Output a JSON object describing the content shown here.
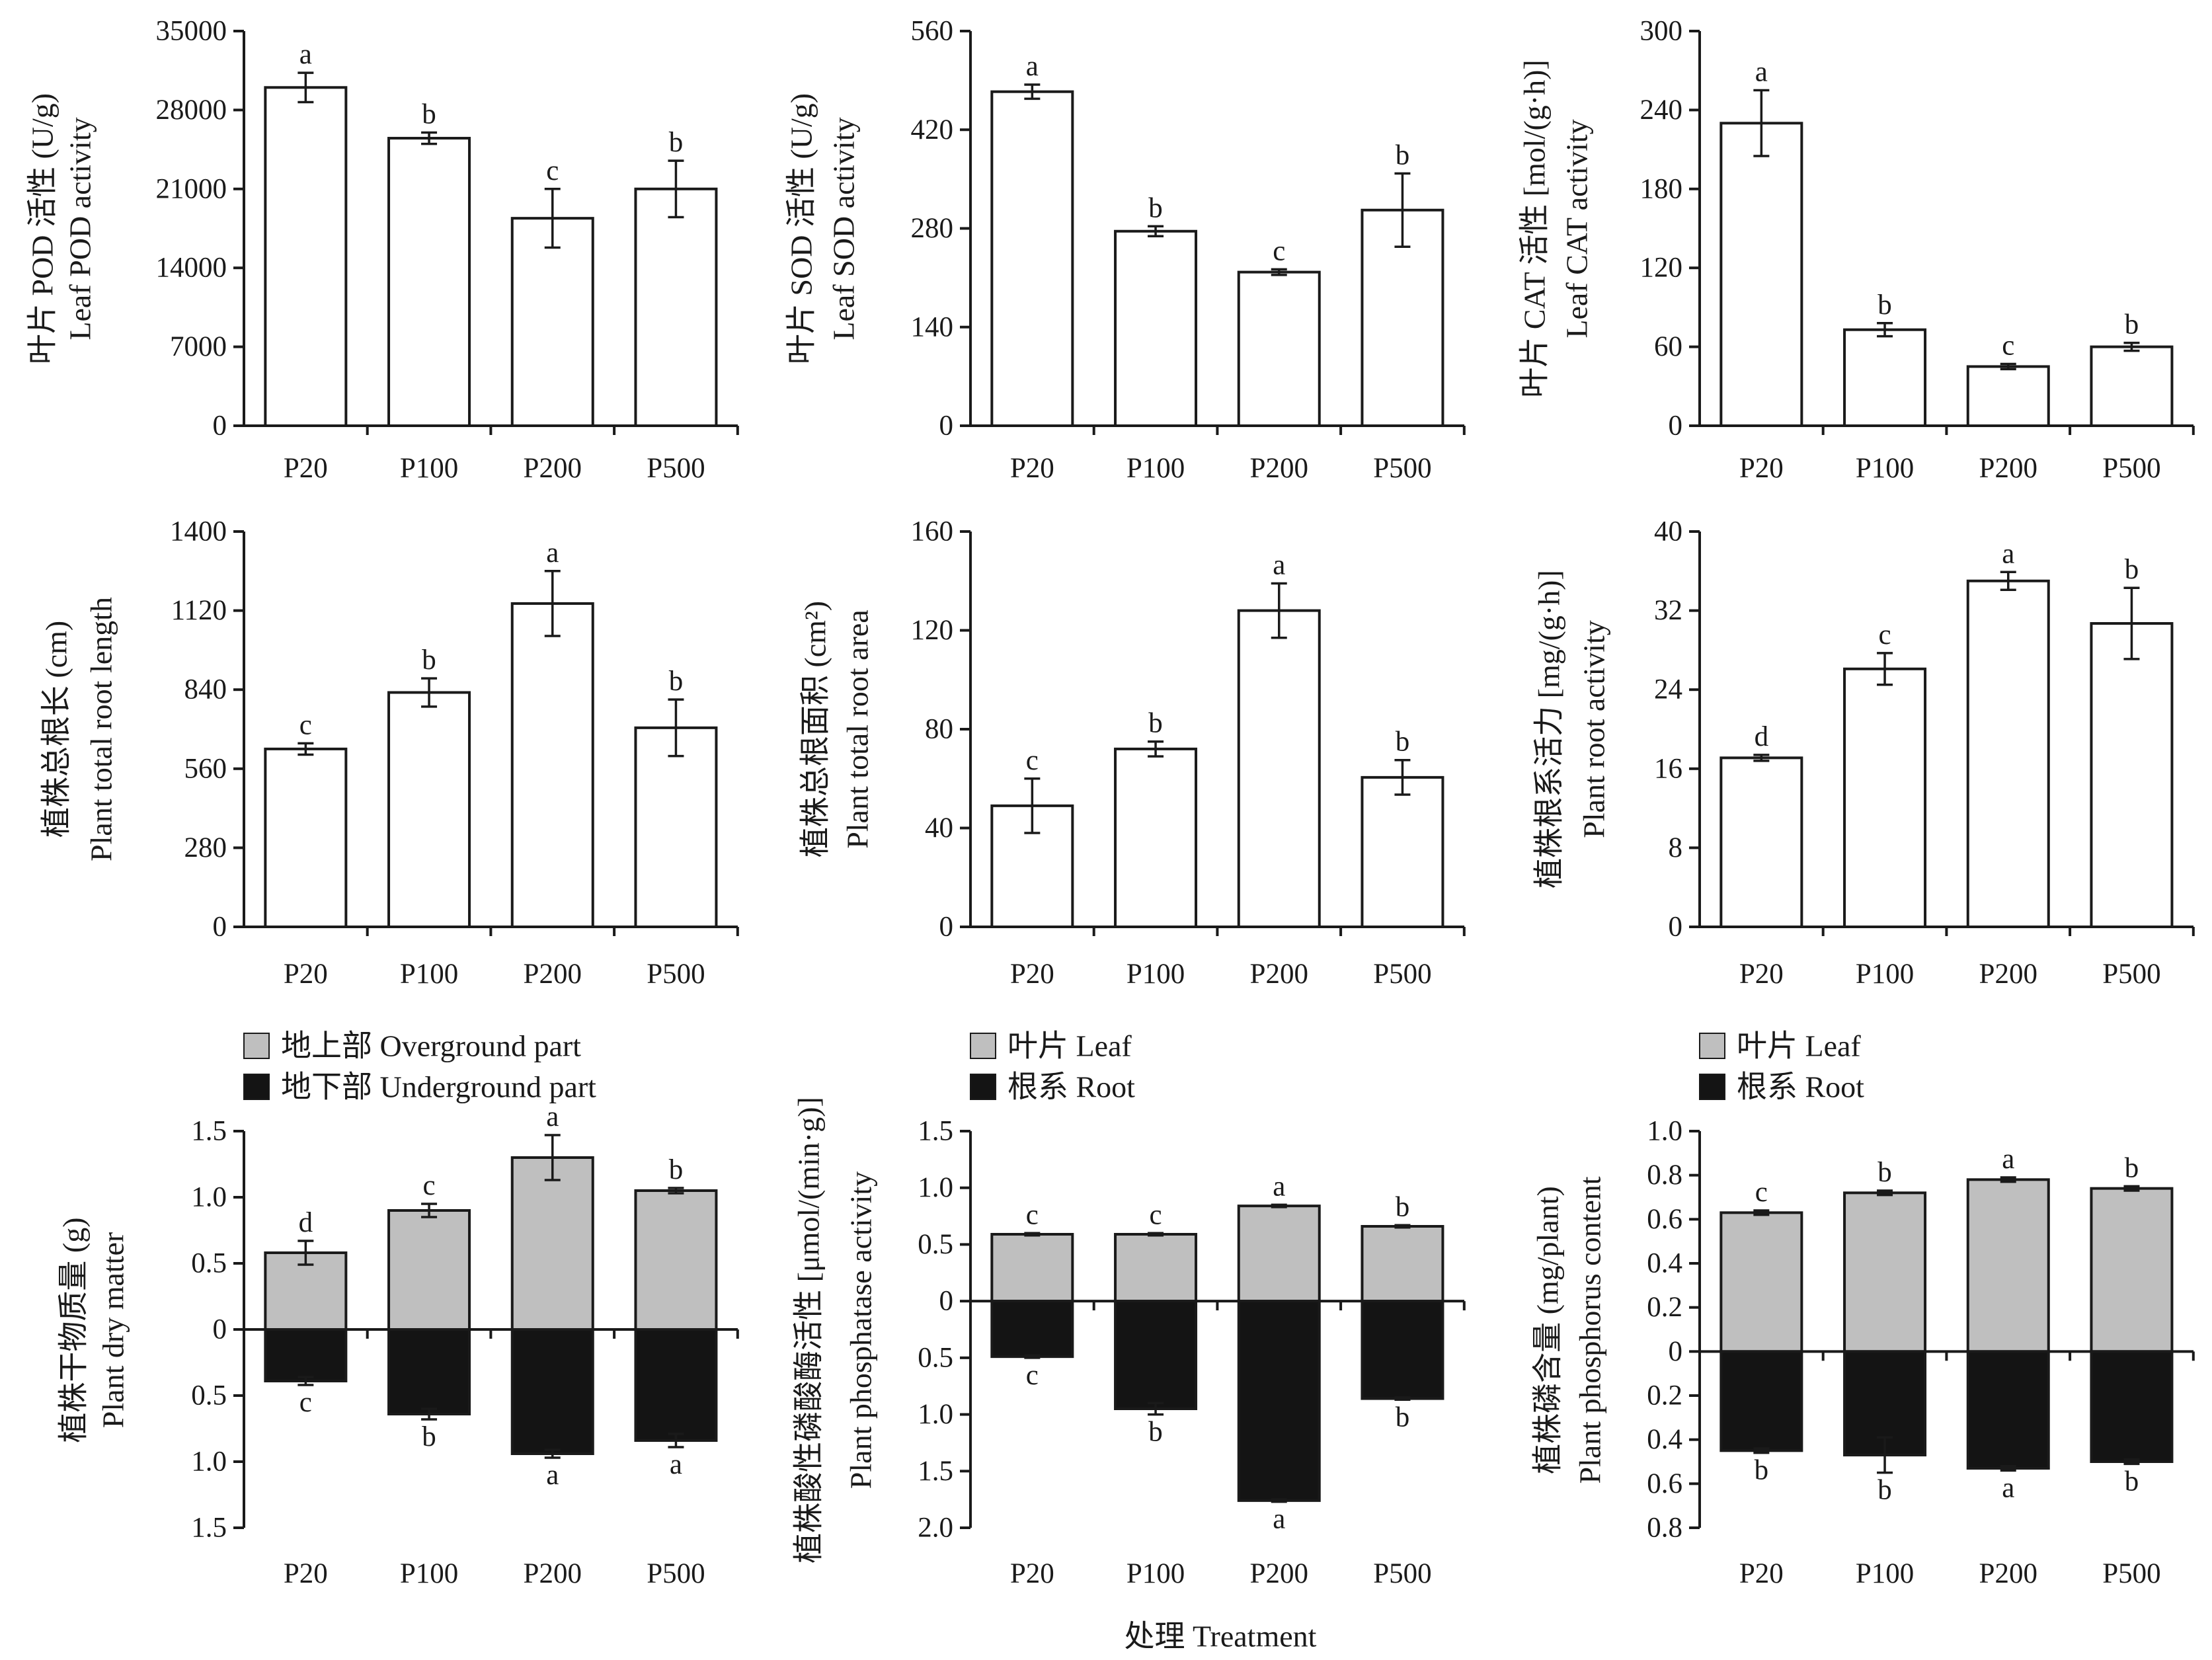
{
  "figure": {
    "xlabel": "处理 Treatment"
  },
  "chart_data": [
    {
      "type": "bar",
      "categories": [
        "P20",
        "P100",
        "P200",
        "P500"
      ],
      "ylabel": [
        "叶片 POD 活性 (U/g)",
        "Leaf POD activity"
      ],
      "ylim": [
        0,
        35000
      ],
      "yticks": [
        "0",
        "7000",
        "14000",
        "21000",
        "28000",
        "35000"
      ],
      "series": [
        {
          "color": "#ffffff",
          "values": [
            30000,
            25500,
            18400,
            21000
          ],
          "errors": [
            1300,
            500,
            2600,
            2500
          ],
          "labels": [
            "a",
            "b",
            "c",
            "b"
          ]
        }
      ]
    },
    {
      "type": "bar",
      "categories": [
        "P20",
        "P100",
        "P200",
        "P500"
      ],
      "ylabel": [
        "叶片 SOD 活性 (U/g)",
        "Leaf SOD activity"
      ],
      "ylim": [
        0,
        560
      ],
      "yticks": [
        "0",
        "140",
        "280",
        "420",
        "560"
      ],
      "series": [
        {
          "color": "#ffffff",
          "values": [
            474,
            276,
            218,
            306
          ],
          "errors": [
            10,
            7,
            4,
            52
          ],
          "labels": [
            "a",
            "b",
            "c",
            "b"
          ]
        }
      ]
    },
    {
      "type": "bar",
      "categories": [
        "P20",
        "P100",
        "P200",
        "P500"
      ],
      "ylabel": [
        "叶片 CAT 活性 [mol/(g·h)]",
        "Leaf CAT activity"
      ],
      "ylim": [
        0,
        300
      ],
      "yticks": [
        "0",
        "60",
        "120",
        "180",
        "240",
        "300"
      ],
      "series": [
        {
          "color": "#ffffff",
          "values": [
            230,
            73,
            45,
            60
          ],
          "errors": [
            25,
            5,
            2,
            3
          ],
          "labels": [
            "a",
            "b",
            "c",
            "b"
          ]
        }
      ]
    },
    {
      "type": "bar",
      "categories": [
        "P20",
        "P100",
        "P200",
        "P500"
      ],
      "ylabel": [
        "植株总根长 (cm)",
        "Plant total root length"
      ],
      "ylim": [
        0,
        1400
      ],
      "yticks": [
        "0",
        "280",
        "560",
        "840",
        "1120",
        "1400"
      ],
      "series": [
        {
          "color": "#ffffff",
          "values": [
            630,
            830,
            1145,
            705
          ],
          "errors": [
            20,
            50,
            115,
            100
          ],
          "labels": [
            "c",
            "b",
            "a",
            "b"
          ]
        }
      ]
    },
    {
      "type": "bar",
      "categories": [
        "P20",
        "P100",
        "P200",
        "P500"
      ],
      "ylabel": [
        "植株总根面积 (cm²)",
        "Plant total root area"
      ],
      "ylim": [
        0,
        160
      ],
      "yticks": [
        "0",
        "40",
        "80",
        "120",
        "160"
      ],
      "series": [
        {
          "color": "#ffffff",
          "values": [
            49,
            72,
            128,
            60.5
          ],
          "errors": [
            11,
            3,
            11,
            7
          ],
          "labels": [
            "c",
            "b",
            "a",
            "b"
          ]
        }
      ]
    },
    {
      "type": "bar",
      "categories": [
        "P20",
        "P100",
        "P200",
        "P500"
      ],
      "ylabel": [
        "植株根系活力 [mg/(g·h)]",
        "Plant root activity"
      ],
      "ylim": [
        0,
        40
      ],
      "yticks": [
        "0",
        "8",
        "16",
        "24",
        "32",
        "40"
      ],
      "series": [
        {
          "color": "#ffffff",
          "values": [
            17.1,
            26.1,
            35.0,
            30.7
          ],
          "errors": [
            0.3,
            1.6,
            0.9,
            3.6
          ],
          "labels": [
            "d",
            "c",
            "a",
            "b"
          ]
        }
      ]
    },
    {
      "type": "bar",
      "mirrored": true,
      "legend": "top-left",
      "categories": [
        "P20",
        "P100",
        "P200",
        "P500"
      ],
      "ylabel": [
        "植株干物质量 (g)",
        "Plant dry matter"
      ],
      "ylim_above": 1.5,
      "ylim_below": 1.5,
      "yticks_above": [
        "0",
        "0.5",
        "1.0",
        "1.5"
      ],
      "yticks_below": [
        "0.5",
        "1.0",
        "1.5"
      ],
      "series": [
        {
          "name": "地上部 Overground part",
          "side": "above",
          "color": "#bfbfbf",
          "values": [
            0.58,
            0.9,
            1.3,
            1.05
          ],
          "errors": [
            0.09,
            0.05,
            0.17,
            0.02
          ],
          "labels": [
            "d",
            "c",
            "a",
            "b"
          ]
        },
        {
          "name": "地下部 Underground part",
          "side": "below",
          "color": "#141414",
          "values": [
            0.39,
            0.64,
            0.94,
            0.84
          ],
          "errors": [
            0.03,
            0.04,
            0.03,
            0.05
          ],
          "labels": [
            "c",
            "b",
            "a",
            "a"
          ]
        }
      ]
    },
    {
      "type": "bar",
      "mirrored": true,
      "legend": "top-left",
      "categories": [
        "P20",
        "P100",
        "P200",
        "P500"
      ],
      "ylabel": [
        "植株酸性磷酸酶活性 [μmol/(min·g)]",
        "Plant phosphatase activity"
      ],
      "ylim_above": 1.5,
      "ylim_below": 2.0,
      "yticks_above": [
        "0",
        "0.5",
        "1.0",
        "1.5"
      ],
      "yticks_below": [
        "0.5",
        "1.0",
        "1.5",
        "2.0"
      ],
      "series": [
        {
          "name": "叶片 Leaf",
          "side": "above",
          "color": "#bfbfbf",
          "values": [
            0.59,
            0.59,
            0.84,
            0.66
          ],
          "errors": [
            0.01,
            0.01,
            0.01,
            0.01
          ],
          "labels": [
            "c",
            "c",
            "a",
            "b"
          ]
        },
        {
          "name": "根系 Root",
          "side": "below",
          "color": "#141414",
          "values": [
            0.49,
            0.95,
            1.76,
            0.86
          ],
          "errors": [
            0.01,
            0.05,
            0.01,
            0.01
          ],
          "labels": [
            "c",
            "b",
            "a",
            "b"
          ]
        }
      ]
    },
    {
      "type": "bar",
      "mirrored": true,
      "legend": "top-left",
      "categories": [
        "P20",
        "P100",
        "P200",
        "P500"
      ],
      "ylabel": [
        "植株磷含量 (mg/plant)",
        "Plant phosphorus content"
      ],
      "ylim_above": 1.0,
      "ylim_below": 0.8,
      "yticks_above": [
        "0",
        "0.2",
        "0.4",
        "0.6",
        "0.8",
        "1.0"
      ],
      "yticks_below": [
        "0.2",
        "0.4",
        "0.6",
        "0.8"
      ],
      "series": [
        {
          "name": "叶片 Leaf",
          "side": "above",
          "color": "#bfbfbf",
          "values": [
            0.63,
            0.72,
            0.78,
            0.74
          ],
          "errors": [
            0.01,
            0.01,
            0.01,
            0.01
          ],
          "labels": [
            "c",
            "b",
            "a",
            "b"
          ]
        },
        {
          "name": "根系 Root",
          "side": "below",
          "color": "#141414",
          "values": [
            0.45,
            0.47,
            0.53,
            0.5
          ],
          "errors": [
            0.01,
            0.08,
            0.01,
            0.01
          ],
          "labels": [
            "b",
            "b",
            "a",
            "b"
          ]
        }
      ]
    }
  ]
}
